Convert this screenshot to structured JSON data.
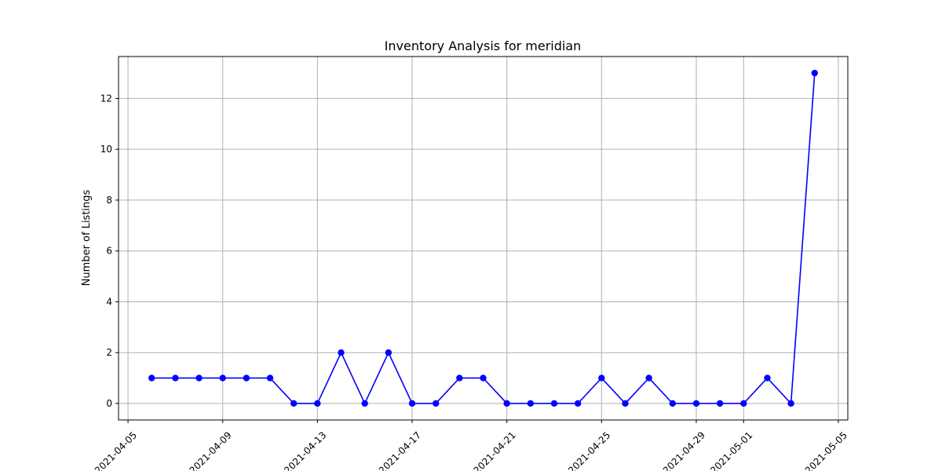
{
  "chart_data": {
    "type": "line",
    "title": "Inventory Analysis for meridian",
    "xlabel": "",
    "ylabel": "Number of Listings",
    "x_ticks": [
      "2021-04-05",
      "2021-04-09",
      "2021-04-13",
      "2021-04-17",
      "2021-04-21",
      "2021-04-25",
      "2021-04-29",
      "2021-05-01",
      "2021-05-05"
    ],
    "y_ticks": [
      0,
      2,
      4,
      6,
      8,
      10,
      12
    ],
    "xlim": [
      "2021-04-04.6",
      "2021-05-05.4"
    ],
    "ylim": [
      -0.65,
      13.65
    ],
    "grid": true,
    "series": [
      {
        "color": "#0000ff",
        "marker": "circle",
        "points": [
          {
            "x": "2021-04-06",
            "y": 1
          },
          {
            "x": "2021-04-07",
            "y": 1
          },
          {
            "x": "2021-04-08",
            "y": 1
          },
          {
            "x": "2021-04-09",
            "y": 1
          },
          {
            "x": "2021-04-10",
            "y": 1
          },
          {
            "x": "2021-04-11",
            "y": 1
          },
          {
            "x": "2021-04-12",
            "y": 0
          },
          {
            "x": "2021-04-13",
            "y": 0
          },
          {
            "x": "2021-04-14",
            "y": 2
          },
          {
            "x": "2021-04-15",
            "y": 0
          },
          {
            "x": "2021-04-16",
            "y": 2
          },
          {
            "x": "2021-04-17",
            "y": 0
          },
          {
            "x": "2021-04-18",
            "y": 0
          },
          {
            "x": "2021-04-19",
            "y": 1
          },
          {
            "x": "2021-04-20",
            "y": 1
          },
          {
            "x": "2021-04-21",
            "y": 0
          },
          {
            "x": "2021-04-22",
            "y": 0
          },
          {
            "x": "2021-04-23",
            "y": 0
          },
          {
            "x": "2021-04-24",
            "y": 0
          },
          {
            "x": "2021-04-25",
            "y": 1
          },
          {
            "x": "2021-04-26",
            "y": 0
          },
          {
            "x": "2021-04-27",
            "y": 1
          },
          {
            "x": "2021-04-28",
            "y": 0
          },
          {
            "x": "2021-04-29",
            "y": 0
          },
          {
            "x": "2021-04-30",
            "y": 0
          },
          {
            "x": "2021-05-01",
            "y": 0
          },
          {
            "x": "2021-05-02",
            "y": 1
          },
          {
            "x": "2021-05-03",
            "y": 0
          },
          {
            "x": "2021-05-04",
            "y": 13
          }
        ]
      }
    ]
  }
}
